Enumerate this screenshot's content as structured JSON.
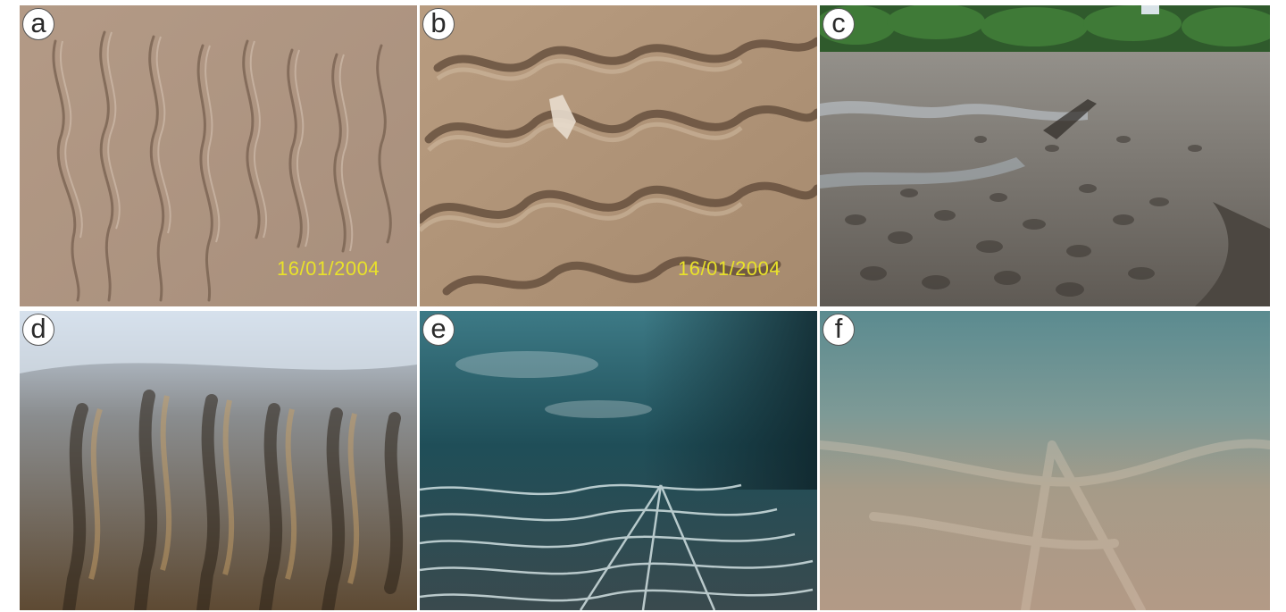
{
  "panels": [
    {
      "id": "a",
      "label": "a",
      "date": "16/01/2004"
    },
    {
      "id": "b",
      "label": "b",
      "date": "16/01/2004"
    },
    {
      "id": "c",
      "label": "c"
    },
    {
      "id": "d",
      "label": "d"
    },
    {
      "id": "e",
      "label": "e"
    },
    {
      "id": "f",
      "label": "f"
    }
  ]
}
